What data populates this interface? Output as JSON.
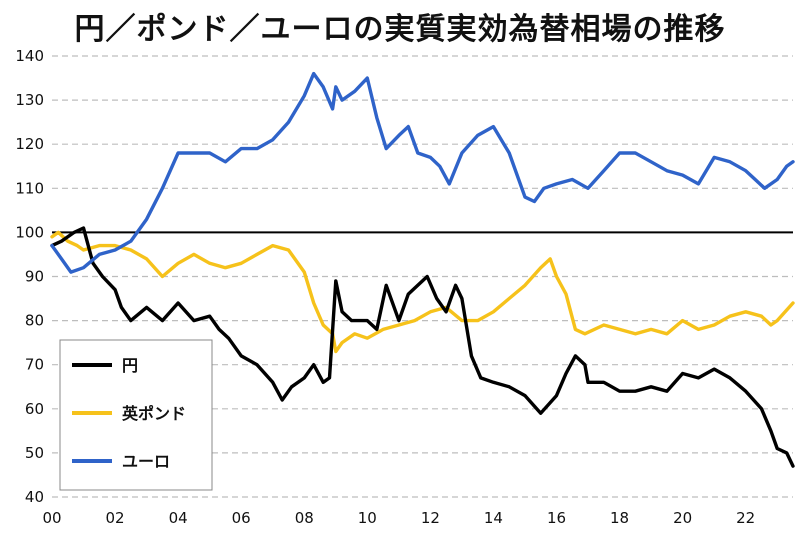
{
  "chart_data": {
    "type": "line",
    "title": "円／ポンド／ユーロの実質実効為替相場の推移",
    "xlabel": "",
    "ylabel": "",
    "x_ticks": [
      "00",
      "02",
      "04",
      "06",
      "08",
      "10",
      "12",
      "14",
      "16",
      "18",
      "20",
      "22"
    ],
    "xlim": [
      2000,
      2023.5
    ],
    "ylim": [
      40,
      140
    ],
    "y_ticks": [
      40,
      50,
      60,
      70,
      80,
      90,
      100,
      110,
      120,
      130,
      140
    ],
    "grid": true,
    "legend": "bottom-left",
    "reference_line": 100,
    "series": [
      {
        "name": "円",
        "color": "#000000",
        "x": [
          2000,
          2000.3,
          2000.7,
          2001,
          2001.3,
          2001.6,
          2002,
          2002.2,
          2002.5,
          2003,
          2003.5,
          2004,
          2004.5,
          2005,
          2005.3,
          2005.6,
          2006,
          2006.5,
          2007,
          2007.3,
          2007.6,
          2008,
          2008.3,
          2008.6,
          2008.8,
          2009,
          2009.2,
          2009.5,
          2010,
          2010.3,
          2010.6,
          2011,
          2011.3,
          2011.6,
          2011.9,
          2012.2,
          2012.5,
          2012.8,
          2013,
          2013.3,
          2013.6,
          2014,
          2014.5,
          2015,
          2015.5,
          2016,
          2016.3,
          2016.6,
          2016.9,
          2017,
          2017.5,
          2018,
          2018.5,
          2019,
          2019.5,
          2020,
          2020.5,
          2021,
          2021.5,
          2022,
          2022.5,
          2022.8,
          2023,
          2023.3,
          2023.5
        ],
        "values": [
          97,
          98,
          100,
          101,
          93,
          90,
          87,
          83,
          80,
          83,
          80,
          84,
          80,
          81,
          78,
          76,
          72,
          70,
          66,
          62,
          65,
          67,
          70,
          66,
          67,
          89,
          82,
          80,
          80,
          78,
          88,
          80,
          86,
          88,
          90,
          85,
          82,
          88,
          85,
          72,
          67,
          66,
          65,
          63,
          59,
          63,
          68,
          72,
          70,
          66,
          66,
          64,
          64,
          65,
          64,
          68,
          67,
          69,
          67,
          64,
          60,
          55,
          51,
          50,
          47
        ]
      },
      {
        "name": "英ポンド",
        "color": "#f6c21b",
        "x": [
          2000,
          2000.2,
          2000.5,
          2000.8,
          2001,
          2001.5,
          2002,
          2002.5,
          2003,
          2003.5,
          2004,
          2004.5,
          2005,
          2005.5,
          2006,
          2006.5,
          2007,
          2007.5,
          2008,
          2008.3,
          2008.6,
          2008.9,
          2009,
          2009.2,
          2009.6,
          2010,
          2010.5,
          2011,
          2011.5,
          2012,
          2012.5,
          2013,
          2013.5,
          2014,
          2014.5,
          2015,
          2015.5,
          2015.8,
          2016,
          2016.3,
          2016.6,
          2016.9,
          2017.5,
          2018,
          2018.5,
          2019,
          2019.5,
          2020,
          2020.5,
          2021,
          2021.5,
          2022,
          2022.5,
          2022.8,
          2023,
          2023.5
        ],
        "values": [
          99,
          100,
          98,
          97,
          96,
          97,
          97,
          96,
          94,
          90,
          93,
          95,
          93,
          92,
          93,
          95,
          97,
          96,
          91,
          84,
          79,
          77,
          73,
          75,
          77,
          76,
          78,
          79,
          80,
          82,
          83,
          80,
          80,
          82,
          85,
          88,
          92,
          94,
          90,
          86,
          78,
          77,
          79,
          78,
          77,
          78,
          77,
          80,
          78,
          79,
          81,
          82,
          81,
          79,
          80,
          84
        ]
      },
      {
        "name": "ユーロ",
        "color": "#2f63c9",
        "x": [
          2000,
          2000.3,
          2000.6,
          2001,
          2001.5,
          2002,
          2002.5,
          2003,
          2003.5,
          2004,
          2004.5,
          2005,
          2005.5,
          2006,
          2006.5,
          2007,
          2007.5,
          2008,
          2008.3,
          2008.6,
          2008.9,
          2009,
          2009.2,
          2009.6,
          2010,
          2010.3,
          2010.6,
          2011,
          2011.3,
          2011.6,
          2012,
          2012.3,
          2012.6,
          2013,
          2013.5,
          2014,
          2014.5,
          2015,
          2015.3,
          2015.6,
          2016,
          2016.5,
          2017,
          2017.5,
          2018,
          2018.5,
          2019,
          2019.5,
          2020,
          2020.5,
          2021,
          2021.5,
          2022,
          2022.3,
          2022.6,
          2023,
          2023.3,
          2023.5
        ],
        "values": [
          97,
          94,
          91,
          92,
          95,
          96,
          98,
          103,
          110,
          118,
          118,
          118,
          116,
          119,
          119,
          121,
          125,
          131,
          136,
          133,
          128,
          133,
          130,
          132,
          135,
          126,
          119,
          122,
          124,
          118,
          117,
          115,
          111,
          118,
          122,
          124,
          118,
          108,
          107,
          110,
          111,
          112,
          110,
          114,
          118,
          118,
          116,
          114,
          113,
          111,
          117,
          116,
          114,
          112,
          110,
          112,
          115,
          116
        ]
      }
    ]
  }
}
